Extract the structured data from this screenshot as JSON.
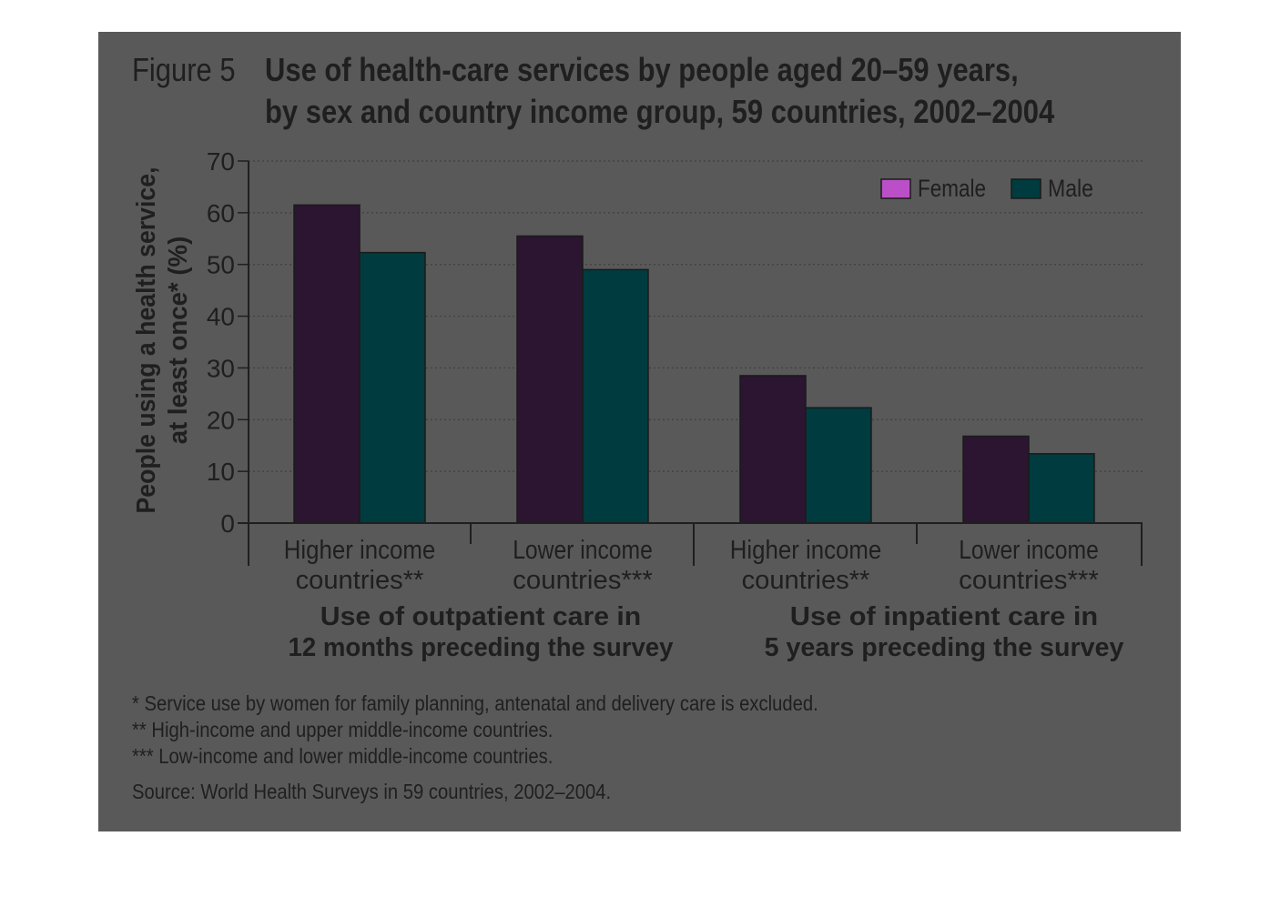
{
  "figure_label": "Figure 5",
  "title_lines": [
    "Use of health-care services by people aged 20–59 years,",
    "by sex and country income group, 59 countries, 2002–2004"
  ],
  "chart_data": {
    "type": "bar",
    "ylabel_lines": [
      "People using a health service,",
      "at least once* (%)"
    ],
    "ylim": [
      0,
      70
    ],
    "yticks": [
      0,
      10,
      20,
      30,
      40,
      50,
      60,
      70
    ],
    "grid": "horizontal dotted",
    "legend_position": "top-right",
    "categories": [
      [
        "Higher income",
        "countries**"
      ],
      [
        "Lower income",
        "countries***"
      ],
      [
        "Higher income",
        "countries**"
      ],
      [
        "Lower income",
        "countries***"
      ]
    ],
    "groups": [
      {
        "label_lines": [
          "Use of outpatient care in",
          "12 months preceding the survey"
        ],
        "categories": [
          0,
          1
        ]
      },
      {
        "label_lines": [
          "Use of inpatient care in",
          "5 years preceding the survey"
        ],
        "categories": [
          2,
          3
        ]
      }
    ],
    "series": [
      {
        "name": "Female",
        "color": "#2b1530",
        "values": [
          61.5,
          55.5,
          28.5,
          16.8
        ]
      },
      {
        "name": "Male",
        "color": "#003b3f",
        "values": [
          52.3,
          49.0,
          22.3,
          13.4
        ]
      }
    ],
    "legend_swatch_colors": [
      "#bb4fc7",
      "#003b3f"
    ]
  },
  "footnotes": [
    "* Service use by women for family planning, antenatal and delivery care is excluded.",
    "** High-income and upper middle-income countries.",
    "*** Low-income and lower middle-income countries."
  ],
  "source": "Source: World Health Surveys in 59 countries, 2002–2004."
}
